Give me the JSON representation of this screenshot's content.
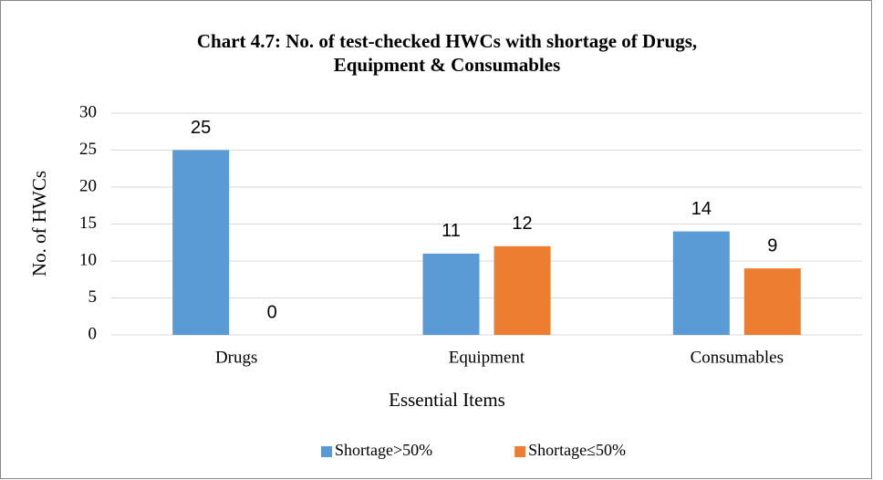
{
  "chart_data": {
    "type": "bar",
    "title": [
      "Chart 4.7: No. of test-checked HWCs with shortage of Drugs,",
      "Equipment & Consumables"
    ],
    "xlabel": "Essential Items",
    "ylabel": "No. of HWCs",
    "categories": [
      "Drugs",
      "Equipment",
      "Consumables"
    ],
    "series": [
      {
        "name": "Shortage>50%",
        "color": "#5b9bd5",
        "values": [
          25,
          11,
          14
        ]
      },
      {
        "name": "Shortage≤50%",
        "color": "#ed7d31",
        "values": [
          0,
          12,
          9
        ]
      }
    ],
    "ylim": [
      0,
      30
    ],
    "yticks": [
      0,
      5,
      10,
      15,
      20,
      25,
      30
    ],
    "grid": true,
    "legend": "bottom"
  }
}
